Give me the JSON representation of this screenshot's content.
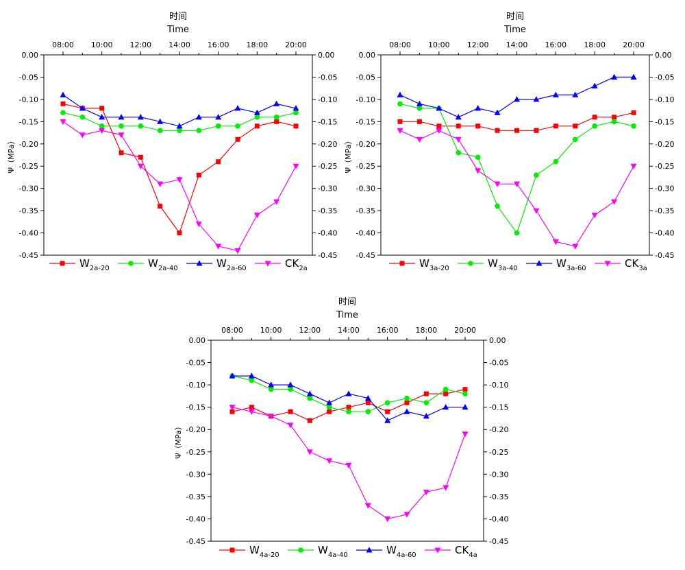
{
  "chart_data": [
    {
      "type": "line",
      "title_cn": "时间",
      "title_en": "Time",
      "ylabel": "Ψ（MPa）",
      "x": [
        "08:00",
        "09:00",
        "10:00",
        "11:00",
        "12:00",
        "13:00",
        "14:00",
        "15:00",
        "16:00",
        "17:00",
        "18:00",
        "19:00",
        "20:00"
      ],
      "xticks": [
        "08:00",
        "10:00",
        "12:00",
        "14:00",
        "16:00",
        "18:00",
        "20:00"
      ],
      "ylim": [
        -0.45,
        0.0
      ],
      "yticks": [
        "0.00",
        "-0.05",
        "-0.10",
        "-0.15",
        "-0.20",
        "-0.25",
        "-0.30",
        "-0.35",
        "-0.40",
        "-0.45"
      ],
      "series": [
        {
          "name": "W2a-20",
          "base": "W",
          "sub": "2a-20",
          "color": "#ff0000",
          "marker": "square",
          "values": [
            -0.11,
            -0.12,
            -0.12,
            -0.22,
            -0.23,
            -0.34,
            -0.4,
            -0.27,
            -0.24,
            -0.19,
            -0.16,
            -0.15,
            -0.16
          ]
        },
        {
          "name": "W2a-40",
          "base": "W",
          "sub": "2a-40",
          "color": "#00ee00",
          "marker": "circle",
          "values": [
            -0.13,
            -0.14,
            -0.16,
            -0.16,
            -0.16,
            -0.17,
            -0.17,
            -0.17,
            -0.16,
            -0.16,
            -0.14,
            -0.14,
            -0.13
          ]
        },
        {
          "name": "W2a-60",
          "base": "W",
          "sub": "2a-60",
          "color": "#0000ff",
          "marker": "triangle-up",
          "values": [
            -0.09,
            -0.12,
            -0.14,
            -0.14,
            -0.14,
            -0.15,
            -0.16,
            -0.14,
            -0.14,
            -0.12,
            -0.13,
            -0.11,
            -0.12
          ]
        },
        {
          "name": "CK2a",
          "base": "CK",
          "sub": "2a",
          "color": "#ff00ff",
          "marker": "triangle-down",
          "values": [
            -0.15,
            -0.18,
            -0.17,
            -0.18,
            -0.25,
            -0.29,
            -0.28,
            -0.38,
            -0.43,
            -0.44,
            -0.36,
            -0.33,
            -0.25
          ]
        }
      ]
    },
    {
      "type": "line",
      "title_cn": "时间",
      "title_en": "Time",
      "ylabel": "Ψ（MPa）",
      "x": [
        "08:00",
        "09:00",
        "10:00",
        "11:00",
        "12:00",
        "13:00",
        "14:00",
        "15:00",
        "16:00",
        "17:00",
        "18:00",
        "19:00",
        "20:00"
      ],
      "xticks": [
        "08:00",
        "10:00",
        "12:00",
        "14:00",
        "16:00",
        "18:00",
        "20:00"
      ],
      "ylim": [
        -0.45,
        0.0
      ],
      "yticks": [
        "0.00",
        "-0.05",
        "-0.10",
        "-0.15",
        "-0.20",
        "-0.25",
        "-0.30",
        "-0.35",
        "-0.40",
        "-0.45"
      ],
      "series": [
        {
          "name": "W3a-20",
          "base": "W",
          "sub": "3a-20",
          "color": "#ff0000",
          "marker": "square",
          "values": [
            -0.15,
            -0.15,
            -0.16,
            -0.16,
            -0.16,
            -0.17,
            -0.17,
            -0.17,
            -0.16,
            -0.16,
            -0.14,
            -0.14,
            -0.13
          ]
        },
        {
          "name": "W3a-40",
          "base": "W",
          "sub": "3a-40",
          "color": "#00ee00",
          "marker": "circle",
          "values": [
            -0.11,
            -0.12,
            -0.12,
            -0.22,
            -0.23,
            -0.34,
            -0.4,
            -0.27,
            -0.24,
            -0.19,
            -0.16,
            -0.15,
            -0.16
          ]
        },
        {
          "name": "W3a-60",
          "base": "W",
          "sub": "3a-60",
          "color": "#0000ff",
          "marker": "triangle-up",
          "values": [
            -0.09,
            -0.11,
            -0.12,
            -0.14,
            -0.12,
            -0.13,
            -0.1,
            -0.1,
            -0.09,
            -0.09,
            -0.07,
            -0.05,
            -0.05
          ]
        },
        {
          "name": "CK3a",
          "base": "CK",
          "sub": "3a",
          "color": "#ff00ff",
          "marker": "triangle-down",
          "values": [
            -0.17,
            -0.19,
            -0.17,
            -0.19,
            -0.26,
            -0.29,
            -0.29,
            -0.35,
            -0.42,
            -0.43,
            -0.36,
            -0.33,
            -0.25
          ]
        }
      ]
    },
    {
      "type": "line",
      "title_cn": "时间",
      "title_en": "Time",
      "ylabel": "Ψ（MPa）",
      "x": [
        "08:00",
        "09:00",
        "10:00",
        "11:00",
        "12:00",
        "13:00",
        "14:00",
        "15:00",
        "16:00",
        "17:00",
        "18:00",
        "19:00",
        "20:00"
      ],
      "xticks": [
        "08:00",
        "10:00",
        "12:00",
        "14:00",
        "16:00",
        "18:00",
        "20:00"
      ],
      "ylim": [
        -0.45,
        0.0
      ],
      "yticks": [
        "0.00",
        "-0.05",
        "-0.10",
        "-0.15",
        "-0.20",
        "-0.25",
        "-0.30",
        "-0.35",
        "-0.40",
        "-0.45"
      ],
      "series": [
        {
          "name": "W4a-20",
          "base": "W",
          "sub": "4a-20",
          "color": "#ff0000",
          "marker": "square",
          "values": [
            -0.16,
            -0.15,
            -0.17,
            -0.16,
            -0.18,
            -0.16,
            -0.15,
            -0.14,
            -0.16,
            -0.14,
            -0.12,
            -0.12,
            -0.11
          ]
        },
        {
          "name": "W4a-40",
          "base": "W",
          "sub": "4a-40",
          "color": "#00ee00",
          "marker": "circle",
          "values": [
            -0.08,
            -0.09,
            -0.11,
            -0.11,
            -0.13,
            -0.15,
            -0.16,
            -0.16,
            -0.14,
            -0.13,
            -0.14,
            -0.11,
            -0.12
          ]
        },
        {
          "name": "W4a-60",
          "base": "W",
          "sub": "4a-60",
          "color": "#0000ff",
          "marker": "triangle-up",
          "values": [
            -0.08,
            -0.08,
            -0.1,
            -0.1,
            -0.12,
            -0.14,
            -0.12,
            -0.13,
            -0.18,
            -0.16,
            -0.17,
            -0.15,
            -0.15
          ]
        },
        {
          "name": "CK4a",
          "base": "CK",
          "sub": "4a",
          "color": "#ff00ff",
          "marker": "triangle-down",
          "values": [
            -0.15,
            -0.16,
            -0.17,
            -0.19,
            -0.25,
            -0.27,
            -0.28,
            -0.37,
            -0.4,
            -0.39,
            -0.34,
            -0.33,
            -0.21
          ]
        }
      ]
    }
  ]
}
